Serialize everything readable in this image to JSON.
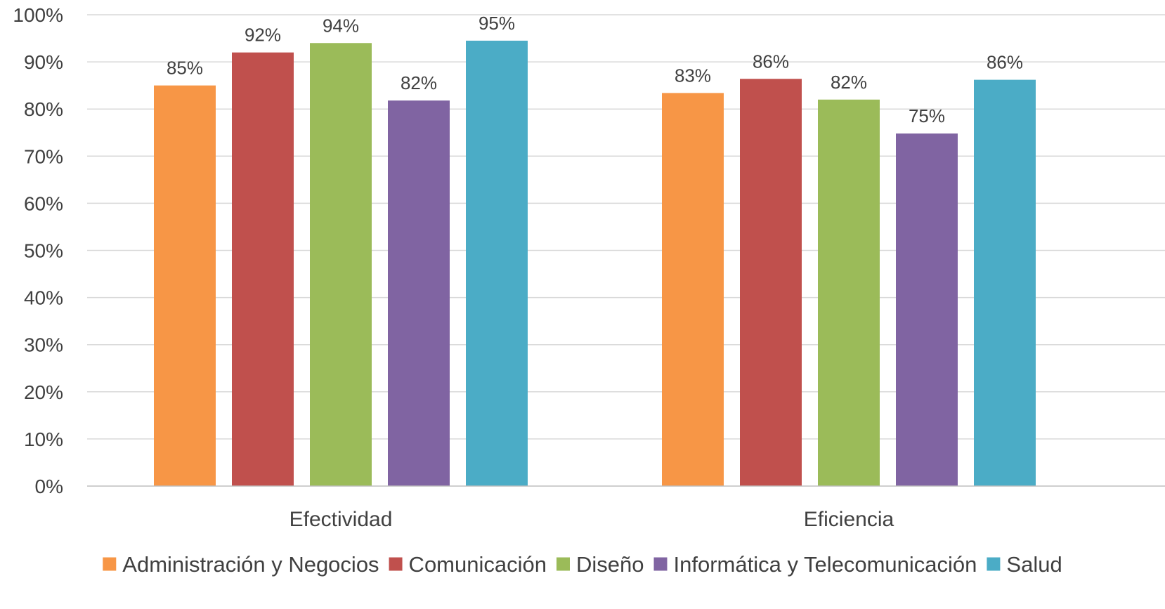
{
  "chart_data": {
    "type": "bar",
    "title": "",
    "xlabel": "",
    "ylabel": "",
    "categories": [
      "Efectividad",
      "Eficiencia"
    ],
    "ylim": [
      0,
      1
    ],
    "yticks": [
      0,
      0.1,
      0.2,
      0.3,
      0.4,
      0.5,
      0.6,
      0.7,
      0.8,
      0.9,
      1.0
    ],
    "ytick_labels": [
      "0%",
      "10%",
      "20%",
      "30%",
      "40%",
      "50%",
      "60%",
      "70%",
      "80%",
      "90%",
      "100%"
    ],
    "grid": true,
    "legend_position": "bottom",
    "series": [
      {
        "name": "Administración y Negocios",
        "color": "#F79646",
        "values": [
          0.85,
          0.834
        ],
        "labels": [
          "85%",
          "83%"
        ]
      },
      {
        "name": "Comunicación",
        "color": "#C0504D",
        "values": [
          0.92,
          0.864
        ],
        "labels": [
          "92%",
          "86%"
        ]
      },
      {
        "name": "Diseño",
        "color": "#9BBB59",
        "values": [
          0.94,
          0.82
        ],
        "labels": [
          "94%",
          "82%"
        ]
      },
      {
        "name": "Informática y Telecomunicación",
        "color": "#8064A2",
        "values": [
          0.818,
          0.748
        ],
        "labels": [
          "82%",
          "75%"
        ]
      },
      {
        "name": "Salud",
        "color": "#4BACC6",
        "values": [
          0.945,
          0.862
        ],
        "labels": [
          "95%",
          "86%"
        ]
      }
    ]
  }
}
